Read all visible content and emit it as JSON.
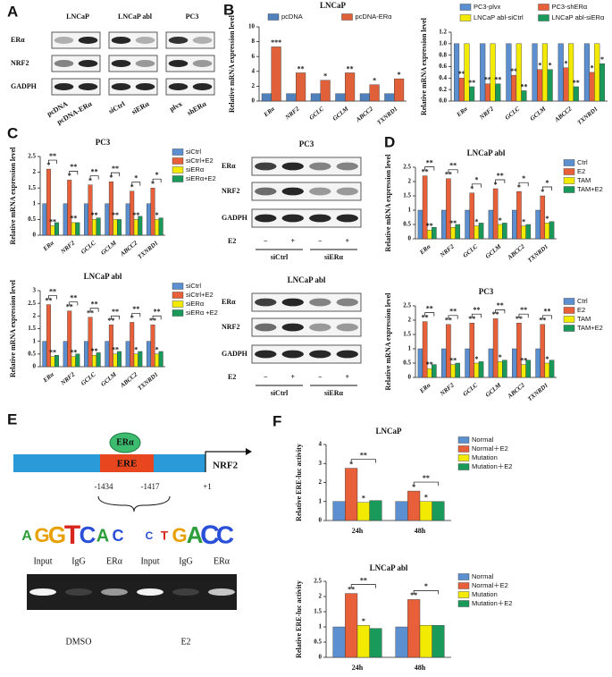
{
  "figure": {
    "letters": [
      "A",
      "B",
      "C",
      "D",
      "E",
      "F"
    ],
    "A": {
      "groups": [
        "LNCaP",
        "LNCaP abl",
        "PC3"
      ],
      "rows": [
        "ERα",
        "NRF2",
        "GADPH"
      ],
      "lanes": [
        "pcDNA",
        "pcDNA-ERα",
        "siCtrl",
        "siERα",
        "plvx",
        "shERα"
      ]
    },
    "C_blots": [
      {
        "title": "PC3",
        "rows": [
          "ERα",
          "NRF2",
          "GADPH"
        ],
        "treatment": "E2",
        "signs": [
          "−",
          "+",
          "−",
          "+"
        ],
        "groups": [
          "siCtrl",
          "siERα"
        ]
      },
      {
        "title": "LNCaP abl",
        "rows": [
          "ERα",
          "NRF2",
          "GADPH"
        ],
        "treatment": "E2",
        "signs": [
          "−",
          "+",
          "−",
          "+"
        ],
        "groups": [
          "siCtrl",
          "siERα"
        ]
      }
    ],
    "E": {
      "protein": "ERα",
      "element": "ERE",
      "gene": "NRF2",
      "positions": [
        "-1434",
        "-1417",
        "+1"
      ],
      "logo": [
        "A",
        "G",
        "G",
        "T",
        "C",
        "A",
        "C",
        "C",
        "T",
        "G",
        "A",
        "C",
        "C"
      ],
      "lanes": [
        "Input",
        "IgG",
        "ERα",
        "Input",
        "IgG",
        "ERα"
      ],
      "conditions": [
        "DMSO",
        "E2"
      ]
    }
  },
  "chart_data": [
    {
      "type": "bar",
      "title": "LNCaP",
      "y_label": "Relative mRNA expression level",
      "legend": "top",
      "categories": [
        "ERα",
        "NRF2",
        "GCLC",
        "GCLM",
        "ABCC2",
        "TXNRD1"
      ],
      "series": [
        {
          "name": "pcDNA",
          "color": "#4f81bd",
          "values": [
            1,
            1,
            1,
            1,
            1,
            1
          ]
        },
        {
          "name": "pcDNA-ERα",
          "color": "#e0603a",
          "values": [
            7.3,
            3.8,
            2.8,
            3.8,
            2.2,
            3.0
          ],
          "significance": [
            "***",
            "**",
            "*",
            "**",
            "*",
            "*"
          ]
        }
      ],
      "ylim": [
        0,
        10
      ],
      "yticks": [
        0,
        2,
        4,
        6,
        8,
        10
      ]
    },
    {
      "type": "bar",
      "y_label": "Relative mRNA expression level",
      "legend": "top",
      "categories": [
        "ERα",
        "NRF2",
        "GCLC",
        "GCLM",
        "ABCC2",
        "TXNRD1"
      ],
      "series": [
        {
          "name": "PC3-plvx",
          "color": "#5b8fd0",
          "values": [
            1,
            1,
            1,
            1,
            1,
            1
          ]
        },
        {
          "name": "PC3-shERα",
          "color": "#e8603a",
          "values": [
            0.4,
            0.3,
            0.45,
            0.55,
            0.58,
            0.5
          ],
          "significance": [
            "**",
            "**",
            "**",
            "*",
            "*",
            "*"
          ]
        },
        {
          "name": "LNCaP abl-siCtrl",
          "color": "#f2ea00",
          "values": [
            1,
            1,
            1,
            1,
            1,
            1
          ]
        },
        {
          "name": "LNCaP abl-siERα",
          "color": "#1a9a5a",
          "values": [
            0.25,
            0.3,
            0.18,
            0.55,
            0.25,
            0.65
          ],
          "significance": [
            "**",
            "**",
            "**",
            "*",
            "**",
            "*"
          ]
        }
      ],
      "ylim": [
        0,
        1.2
      ],
      "yticks": [
        {
          "value": 0,
          "label": "0.0"
        },
        0.2,
        0.4,
        0.6,
        0.8,
        {
          "value": 1,
          "label": "1.0"
        },
        1.2
      ]
    },
    {
      "type": "bar",
      "title": "PC3",
      "y_label": "Relative mRNA expression level",
      "legend": "right",
      "categories": [
        "ERα",
        "NRF2",
        "GCLC",
        "GCLM",
        "ABCC2",
        "TXNRD1"
      ],
      "series": [
        {
          "name": "siCtrl",
          "color": "#5b8fd0",
          "values": [
            1,
            1,
            1,
            1,
            1,
            1
          ]
        },
        {
          "name": "siCtrl+E2",
          "color": "#e8603a",
          "values": [
            2.1,
            1.75,
            1.6,
            1.7,
            1.4,
            1.5
          ],
          "significance": [
            "*",
            "*",
            "*",
            "*",
            "*",
            "*"
          ]
        },
        {
          "name": "siERα",
          "color": "#f2ea00",
          "values": [
            0.3,
            0.4,
            0.5,
            0.5,
            0.5,
            0.5
          ],
          "significance": [
            "**",
            "**",
            "**",
            "**",
            "**",
            "*"
          ]
        },
        {
          "name": "siERα+E2",
          "color": "#1a9a5a",
          "values": [
            0.4,
            0.4,
            0.55,
            0.5,
            0.6,
            0.55
          ]
        }
      ],
      "comparisons": [
        "**",
        "**",
        "**",
        "**",
        "*",
        "*"
      ],
      "ylim": [
        0,
        2.5
      ],
      "yticks": [
        0,
        0.5,
        1,
        1.5,
        2,
        2.5
      ]
    },
    {
      "type": "bar",
      "title": "LNCaP abl",
      "y_label": "Relative mRNA expression level",
      "legend": "right",
      "categories": [
        "ERα",
        "NRF2",
        "GCLC",
        "GCLM",
        "ABCC2",
        "TXNRD1"
      ],
      "series": [
        {
          "name": "siCtrl",
          "color": "#5b8fd0",
          "values": [
            1,
            1,
            1,
            1,
            1,
            1
          ]
        },
        {
          "name": "siCtrl+E2",
          "color": "#e8603a",
          "values": [
            2.45,
            2.2,
            1.95,
            1.65,
            1.75,
            1.65
          ],
          "significance": [
            "**",
            "**",
            "**",
            "**",
            "*",
            "**"
          ]
        },
        {
          "name": "siERα",
          "color": "#f2ea00",
          "values": [
            0.4,
            0.4,
            0.45,
            0.5,
            0.5,
            0.5
          ],
          "significance": [
            "**",
            "**",
            "**",
            "**",
            "*",
            "*"
          ]
        },
        {
          "name": "siERα +E2",
          "color": "#1a9a5a",
          "values": [
            0.45,
            0.5,
            0.55,
            0.6,
            0.6,
            0.6
          ]
        }
      ],
      "comparisons": [
        "**",
        "**",
        "**",
        "**",
        "**",
        "**"
      ],
      "ylim": [
        0,
        3
      ],
      "yticks": [
        0,
        0.5,
        1,
        1.5,
        2,
        2.5,
        3
      ]
    },
    {
      "type": "bar",
      "title": "LNCaP abl",
      "y_label": "Relative mRNA expression level",
      "legend": "right",
      "categories": [
        "ERα",
        "NRF2",
        "GCLC",
        "GCLM",
        "ABCC2",
        "TXNRD1"
      ],
      "series": [
        {
          "name": "Ctrl",
          "color": "#5b8fd0",
          "values": [
            1,
            1,
            1,
            1,
            1,
            1
          ]
        },
        {
          "name": "E2",
          "color": "#e8603a",
          "values": [
            2.2,
            2.1,
            1.6,
            1.75,
            1.65,
            1.5
          ],
          "significance": [
            "**",
            "**",
            "*",
            "*",
            "*",
            "*"
          ]
        },
        {
          "name": "TAM",
          "color": "#f2ea00",
          "values": [
            0.3,
            0.4,
            0.45,
            0.5,
            0.45,
            0.55
          ],
          "significance": [
            "**",
            "**",
            "*",
            "*",
            "*",
            "*"
          ]
        },
        {
          "name": "TAM+E2",
          "color": "#1a9a5a",
          "values": [
            0.4,
            0.5,
            0.55,
            0.55,
            0.5,
            0.6
          ]
        }
      ],
      "comparisons": [
        "**",
        "**",
        "*",
        "**",
        "*",
        "*"
      ],
      "ylim": [
        0,
        2.5
      ],
      "yticks": [
        0,
        0.5,
        1,
        1.5,
        2,
        2.5
      ]
    },
    {
      "type": "bar",
      "title": "PC3",
      "y_label": "Relative mRNA expression level",
      "legend": "right",
      "categories": [
        "ERα",
        "NRF2",
        "GCLC",
        "GCLM",
        "ABCC2",
        "TXNRD1"
      ],
      "series": [
        {
          "name": "Ctrl",
          "color": "#5b8fd0",
          "values": [
            1,
            1,
            1,
            1,
            1,
            1
          ]
        },
        {
          "name": "E2",
          "color": "#e8603a",
          "values": [
            1.95,
            1.85,
            1.9,
            2.05,
            1.9,
            1.85
          ],
          "significance": [
            "**",
            "**",
            "**",
            "**",
            "**",
            "**"
          ]
        },
        {
          "name": "TAM",
          "color": "#f2ea00",
          "values": [
            0.3,
            0.45,
            0.5,
            0.55,
            0.45,
            0.5
          ],
          "significance": [
            "**",
            "**",
            "*",
            "*",
            "**",
            "*"
          ]
        },
        {
          "name": "TAM+E2",
          "color": "#1a9a5a",
          "values": [
            0.45,
            0.5,
            0.55,
            0.6,
            0.6,
            0.6
          ]
        }
      ],
      "comparisons": [
        "**",
        "**",
        "**",
        "**",
        "**",
        "**"
      ],
      "ylim": [
        0,
        2.5
      ],
      "yticks": [
        0,
        0.5,
        1,
        1.5,
        2,
        2.5
      ]
    },
    {
      "type": "bar",
      "title": "LNCaP",
      "y_label": "Relative ERE-luc activity",
      "legend": "right",
      "categories": [
        "24h",
        "48h"
      ],
      "series": [
        {
          "name": "Normal",
          "color": "#5b8fd0",
          "values": [
            1,
            1
          ]
        },
        {
          "name": "Normal＋E2",
          "color": "#e8603a",
          "values": [
            2.75,
            1.55
          ],
          "significance": [
            "*",
            "*"
          ]
        },
        {
          "name": "Mutation",
          "color": "#f2ea00",
          "values": [
            0.95,
            1.0
          ],
          "significance": [
            "*",
            "*"
          ]
        },
        {
          "name": "Mutation＋E2",
          "color": "#1a9a5a",
          "values": [
            1.05,
            1.0
          ]
        }
      ],
      "comparisons": [
        "**",
        "**"
      ],
      "ylim": [
        0,
        4
      ],
      "yticks": [
        0,
        1,
        2,
        3,
        4
      ]
    },
    {
      "type": "bar",
      "title": "LNCaP abl",
      "y_label": "Relative ERE-luc activity",
      "legend": "right",
      "categories": [
        "24h",
        "48h"
      ],
      "series": [
        {
          "name": "Normal",
          "color": "#5b8fd0",
          "values": [
            1,
            1
          ]
        },
        {
          "name": "Normal＋E2",
          "color": "#e8603a",
          "values": [
            2.1,
            1.9
          ],
          "significance": [
            "**",
            "**"
          ]
        },
        {
          "name": "Mutation",
          "color": "#f2ea00",
          "values": [
            1.05,
            1.05
          ],
          "significance": [
            "*",
            null
          ]
        },
        {
          "name": "Mutation＋E2",
          "color": "#1a9a5a",
          "values": [
            0.95,
            1.05
          ]
        }
      ],
      "comparisons": [
        "**",
        "*"
      ],
      "ylim": [
        0,
        2.5
      ],
      "yticks": [
        0,
        0.5,
        1,
        1.5,
        2,
        2.5
      ]
    }
  ]
}
